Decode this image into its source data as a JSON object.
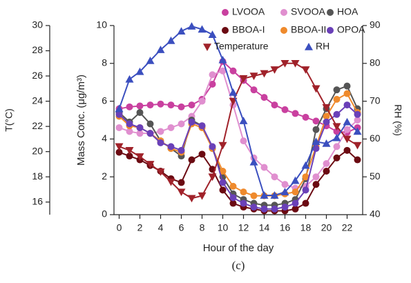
{
  "chart_data": {
    "type": "line",
    "x": [
      0,
      1,
      2,
      3,
      4,
      5,
      6,
      7,
      8,
      9,
      10,
      11,
      12,
      13,
      14,
      15,
      16,
      17,
      18,
      19,
      20,
      21,
      22,
      23
    ],
    "xlabel": "Hour of the day",
    "ylabel": "Mass Conc. (μg/m³)",
    "y2label": "RH (%)",
    "y3label": "T(°C)",
    "caption": "(c)",
    "xlim": [
      -0.5,
      23.5
    ],
    "xticks": [
      0,
      2,
      4,
      6,
      8,
      10,
      12,
      14,
      16,
      18,
      20,
      22
    ],
    "ylim": [
      0,
      10
    ],
    "yticks": [
      0,
      2,
      4,
      6,
      8,
      10
    ],
    "y2lim": [
      40,
      90
    ],
    "y2ticks": [
      40,
      50,
      60,
      70,
      80,
      90
    ],
    "y3lim": [
      15,
      30
    ],
    "y3ticks": [
      16,
      18,
      20,
      22,
      24,
      26,
      28,
      30
    ],
    "series": [
      {
        "name": "LVOOA",
        "color": "#c9409f",
        "marker": "circle",
        "values": [
          5.6,
          5.7,
          5.75,
          5.8,
          5.85,
          5.8,
          5.7,
          5.8,
          6.1,
          6.9,
          8.1,
          7.6,
          7.1,
          6.6,
          6.2,
          5.8,
          5.55,
          5.35,
          5.15,
          4.95,
          4.7,
          4.4,
          4.35,
          4.6
        ]
      },
      {
        "name": "SVOOA",
        "color": "#e08fcf",
        "marker": "circle",
        "values": [
          4.6,
          4.4,
          4.3,
          4.3,
          4.4,
          4.6,
          4.8,
          5.2,
          6.0,
          7.4,
          7.6,
          5.8,
          3.9,
          3.0,
          2.5,
          2.0,
          1.6,
          1.4,
          1.5,
          2.0,
          2.7,
          3.6,
          4.5,
          5.0
        ]
      },
      {
        "name": "HOA",
        "color": "#555555",
        "marker": "circle",
        "values": [
          5.4,
          4.9,
          5.4,
          4.8,
          3.9,
          3.5,
          3.1,
          5.0,
          4.7,
          3.5,
          2.0,
          1.1,
          0.8,
          0.6,
          0.5,
          0.5,
          0.6,
          0.8,
          1.9,
          4.5,
          5.6,
          6.6,
          6.8,
          5.6
        ]
      },
      {
        "name": "BBOA-I",
        "color": "#6b0a12",
        "marker": "circle",
        "values": [
          3.3,
          3.1,
          2.9,
          2.6,
          2.3,
          1.9,
          1.7,
          2.9,
          3.2,
          2.4,
          1.3,
          0.6,
          0.4,
          0.3,
          0.2,
          0.2,
          0.2,
          0.3,
          0.6,
          1.6,
          2.3,
          3.0,
          3.4,
          2.9
        ]
      },
      {
        "name": "BBOA-II",
        "color": "#ef8a2c",
        "marker": "circle",
        "values": [
          5.2,
          4.7,
          4.6,
          4.3,
          3.9,
          3.5,
          3.3,
          4.8,
          4.6,
          3.5,
          2.3,
          1.5,
          1.2,
          1.0,
          1.0,
          1.0,
          1.1,
          1.2,
          2.0,
          3.6,
          5.2,
          6.1,
          6.4,
          5.4
        ]
      },
      {
        "name": "OPOA",
        "color": "#6a40b8",
        "marker": "circle",
        "values": [
          5.3,
          4.8,
          4.6,
          4.3,
          3.8,
          3.6,
          3.4,
          4.9,
          4.7,
          3.6,
          1.7,
          0.9,
          0.6,
          0.4,
          0.3,
          0.3,
          0.4,
          0.6,
          1.3,
          3.5,
          4.9,
          5.3,
          5.8,
          5.3
        ]
      },
      {
        "name": "Temperature",
        "color": "#a0222a",
        "marker": "triangle-down",
        "axis": "y3",
        "values": [
          20.4,
          20.1,
          19.6,
          19.0,
          18.4,
          17.6,
          16.8,
          16.3,
          16.5,
          18.0,
          20.5,
          24.0,
          25.8,
          26.0,
          26.2,
          26.5,
          27.0,
          27.0,
          26.5,
          25.0,
          23.5,
          22.0,
          21.0,
          20.5
        ]
      },
      {
        "name": "RH",
        "color": "#3b4fbf",
        "marker": "triangle-up",
        "axis": "y2",
        "values": [
          68,
          75.8,
          77.8,
          80.7,
          83.6,
          86,
          88.5,
          89.8,
          89,
          87.6,
          80.9,
          72.3,
          64.8,
          53.9,
          45.1,
          45.1,
          46,
          49,
          53,
          59.3,
          58.8,
          60.3,
          64.5,
          62
        ]
      }
    ]
  }
}
